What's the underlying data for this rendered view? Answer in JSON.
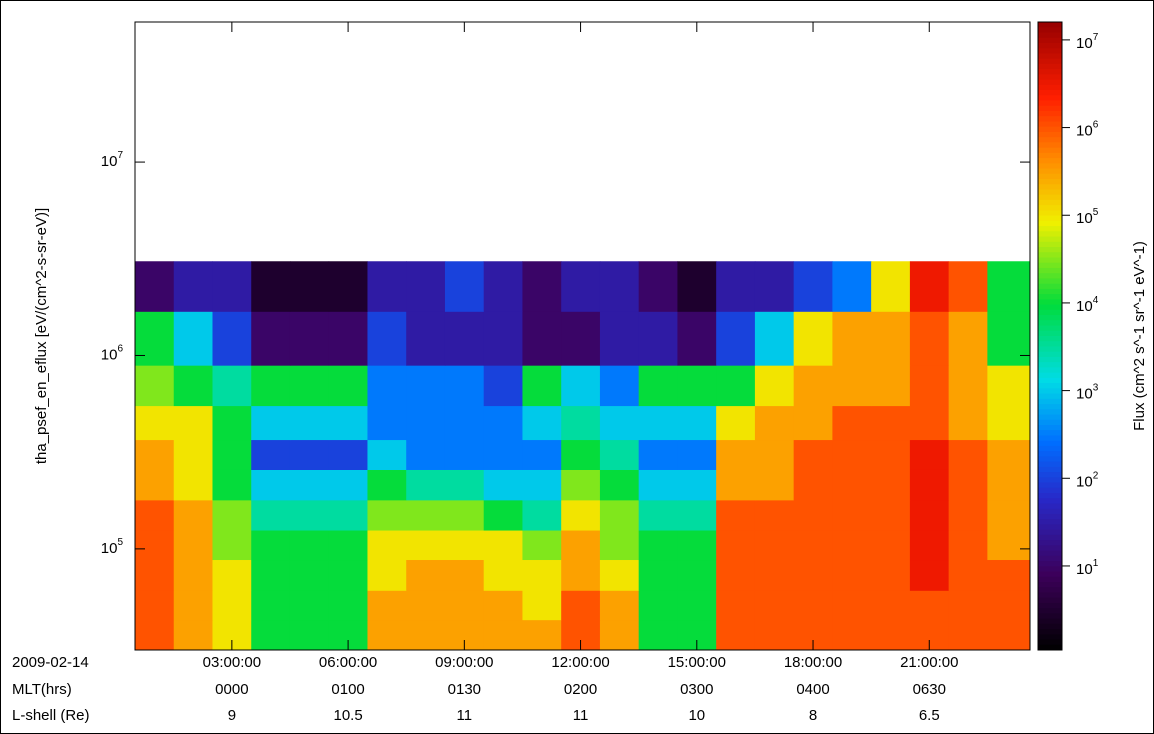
{
  "chart_data": {
    "type": "heatmap",
    "ylabel": "tha_psef_en_eflux [eV/(cm^2-s-sr-eV)]",
    "xlim": [
      0.5,
      23.6
    ],
    "ylim": [
      30000,
      53000000
    ],
    "ylog": true,
    "yticks": [
      {
        "value": 100000,
        "label": "10",
        "exponent": "5"
      },
      {
        "value": 1000000,
        "label": "10",
        "exponent": "6"
      },
      {
        "value": 10000000,
        "label": "10",
        "exponent": "7"
      }
    ],
    "date_label": "2009-02-14",
    "xticks": [
      {
        "value": 3,
        "label": "03:00:00"
      },
      {
        "value": 6,
        "label": "06:00:00"
      },
      {
        "value": 9,
        "label": "09:00:00"
      },
      {
        "value": 12,
        "label": "12:00:00"
      },
      {
        "value": 15,
        "label": "15:00:00"
      },
      {
        "value": 18,
        "label": "18:00:00"
      },
      {
        "value": 21,
        "label": "21:00:00"
      }
    ],
    "mlt": {
      "label": "MLT(hrs)",
      "values": [
        "0000",
        "0100",
        "0130",
        "0200",
        "0300",
        "0400",
        "0630"
      ]
    },
    "lshell": {
      "label": "L-shell (Re)",
      "values": [
        9,
        10.5,
        11,
        11,
        10,
        8,
        6.5
      ]
    },
    "x_bins": [
      0.5,
      1.5,
      2.5,
      3.5,
      4.5,
      5.5,
      6.5,
      7.5,
      8.5,
      9.5,
      10.5,
      11.5,
      12.5,
      13.5,
      14.5,
      15.5,
      16.5,
      17.5,
      18.5,
      19.5,
      20.5,
      21.5,
      22.5,
      23.6
    ],
    "y_bins": [
      30000,
      43000,
      61000,
      88000,
      125000,
      179000,
      257000,
      367000,
      550000,
      890000,
      1690000,
      3070000
    ],
    "z": [
      [
        1000000.0,
        300000.0,
        100000.0,
        10000.0,
        10000.0,
        10000.0,
        300000.0,
        300000.0,
        300000.0,
        300000.0,
        300000.0,
        1000000.0,
        300000.0,
        10000.0,
        10000.0,
        1000000.0,
        1000000.0,
        1000000.0,
        1000000.0,
        1000000.0,
        1000000.0,
        1000000.0,
        1000000.0
      ],
      [
        1000000.0,
        300000.0,
        100000.0,
        10000.0,
        10000.0,
        10000.0,
        300000.0,
        300000.0,
        300000.0,
        300000.0,
        100000.0,
        1000000.0,
        300000.0,
        10000.0,
        10000.0,
        1000000.0,
        1000000.0,
        1000000.0,
        1000000.0,
        1000000.0,
        1000000.0,
        1000000.0,
        1000000.0
      ],
      [
        1000000.0,
        300000.0,
        100000.0,
        10000.0,
        10000.0,
        10000.0,
        100000.0,
        300000.0,
        300000.0,
        100000.0,
        100000.0,
        300000.0,
        100000.0,
        10000.0,
        10000.0,
        1000000.0,
        1000000.0,
        1000000.0,
        1000000.0,
        1000000.0,
        3000000.0,
        1000000.0,
        1000000.0
      ],
      [
        1000000.0,
        300000.0,
        30000.0,
        10000.0,
        10000.0,
        10000.0,
        100000.0,
        100000.0,
        100000.0,
        100000.0,
        30000.0,
        300000.0,
        30000.0,
        10000.0,
        10000.0,
        1000000.0,
        1000000.0,
        1000000.0,
        1000000.0,
        1000000.0,
        3000000.0,
        1000000.0,
        300000.0
      ],
      [
        1000000.0,
        300000.0,
        30000.0,
        3000.0,
        3000.0,
        3000.0,
        30000.0,
        30000.0,
        30000.0,
        10000.0,
        3000.0,
        100000.0,
        30000.0,
        3000.0,
        3000.0,
        1000000.0,
        1000000.0,
        1000000.0,
        1000000.0,
        1000000.0,
        3000000.0,
        1000000.0,
        300000.0
      ],
      [
        300000.0,
        100000.0,
        10000.0,
        1000.0,
        1000.0,
        1000.0,
        10000.0,
        3000.0,
        3000.0,
        1000.0,
        1000.0,
        30000.0,
        10000.0,
        1000.0,
        1000.0,
        300000.0,
        300000.0,
        1000000.0,
        1000000.0,
        1000000.0,
        3000000.0,
        1000000.0,
        300000.0
      ],
      [
        300000.0,
        100000.0,
        10000.0,
        100.0,
        100.0,
        100.0,
        1000.0,
        300.0,
        300.0,
        300.0,
        300.0,
        10000.0,
        3000.0,
        300.0,
        300.0,
        300000.0,
        300000.0,
        1000000.0,
        1000000.0,
        1000000.0,
        3000000.0,
        1000000.0,
        300000.0
      ],
      [
        100000.0,
        100000.0,
        10000.0,
        1000.0,
        1000.0,
        1000.0,
        300.0,
        300.0,
        300.0,
        300.0,
        1000.0,
        3000.0,
        1000.0,
        1000.0,
        1000.0,
        100000.0,
        300000.0,
        300000.0,
        1000000.0,
        1000000.0,
        1000000.0,
        300000.0,
        100000.0
      ],
      [
        30000.0,
        10000.0,
        3000.0,
        10000.0,
        10000.0,
        10000.0,
        300.0,
        300.0,
        300.0,
        100.0,
        10000.0,
        1000.0,
        300.0,
        10000.0,
        10000.0,
        10000.0,
        100000.0,
        300000.0,
        300000.0,
        300000.0,
        1000000.0,
        300000.0,
        100000.0
      ],
      [
        10000.0,
        1000.0,
        100.0,
        10,
        10,
        10,
        100.0,
        30,
        30,
        30,
        10,
        10,
        30,
        30,
        10,
        100.0,
        1000.0,
        100000.0,
        300000.0,
        300000.0,
        1000000.0,
        300000.0,
        10000.0
      ],
      [
        10,
        30,
        30,
        3,
        3,
        3,
        30,
        30,
        100.0,
        30,
        10,
        30,
        30,
        10,
        3,
        30,
        30,
        100.0,
        300.0,
        100000.0,
        3000000.0,
        1000000.0,
        10000.0
      ]
    ],
    "colorbar": {
      "label": "Flux (cm^2 s^-1 sr^-1 eV^-1)",
      "zlim": [
        1.1,
        16000000
      ],
      "ticks": [
        {
          "value": 10,
          "label": "10",
          "exponent": "1"
        },
        {
          "value": 100,
          "label": "10",
          "exponent": "2"
        },
        {
          "value": 1000,
          "label": "10",
          "exponent": "3"
        },
        {
          "value": 10000,
          "label": "10",
          "exponent": "4"
        },
        {
          "value": 100000,
          "label": "10",
          "exponent": "5"
        },
        {
          "value": 1000000,
          "label": "10",
          "exponent": "6"
        },
        {
          "value": 10000000,
          "label": "10",
          "exponent": "7"
        }
      ]
    }
  }
}
